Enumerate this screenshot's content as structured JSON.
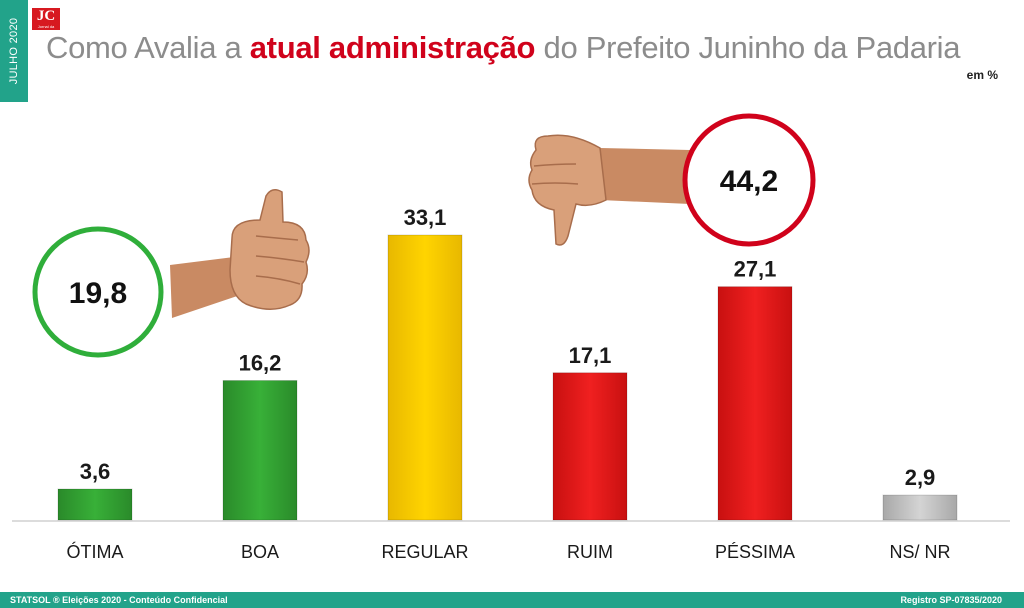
{
  "side_tab": "JULHO 2020",
  "logo": {
    "text": "JC",
    "subtext": "Jornal da Cidade"
  },
  "title": {
    "part1": "Como Avalia a ",
    "highlight": "atual administração",
    "part2": " do Prefeito Juninho da Padaria"
  },
  "unit": "em %",
  "colors": {
    "green": "#2e9a2e",
    "yellow": "#f4c900",
    "red": "#e01818",
    "gray": "#bdbdbd",
    "circle_green": "#2fae3a",
    "circle_red": "#d0021b",
    "accent_teal": "#22a38a"
  },
  "icons": {
    "thumbs_up": "thumbs-up-icon",
    "thumbs_down": "thumbs-down-icon"
  },
  "chart_data": {
    "type": "bar",
    "categories": [
      "ÓTIMA",
      "BOA",
      "REGULAR",
      "RUIM",
      "PÉSSIMA",
      "NS/ NR"
    ],
    "values": [
      3.6,
      16.2,
      33.1,
      17.1,
      27.1,
      2.9
    ],
    "labels": [
      "3,6",
      "16,2",
      "33,1",
      "17,1",
      "27,1",
      "2,9"
    ],
    "bar_colors": [
      "green",
      "green",
      "yellow",
      "red",
      "red",
      "gray"
    ],
    "ylim": [
      0,
      33.1
    ],
    "grid": false,
    "annotations": [
      {
        "text": "19,8",
        "group": "positive",
        "color": "circle_green"
      },
      {
        "text": "44,2",
        "group": "negative",
        "color": "circle_red"
      }
    ]
  },
  "footer": {
    "left": "STATSOL ®  Eleições 2020  - Conteúdo Confidencial",
    "right": "Registro SP-07835/2020"
  }
}
